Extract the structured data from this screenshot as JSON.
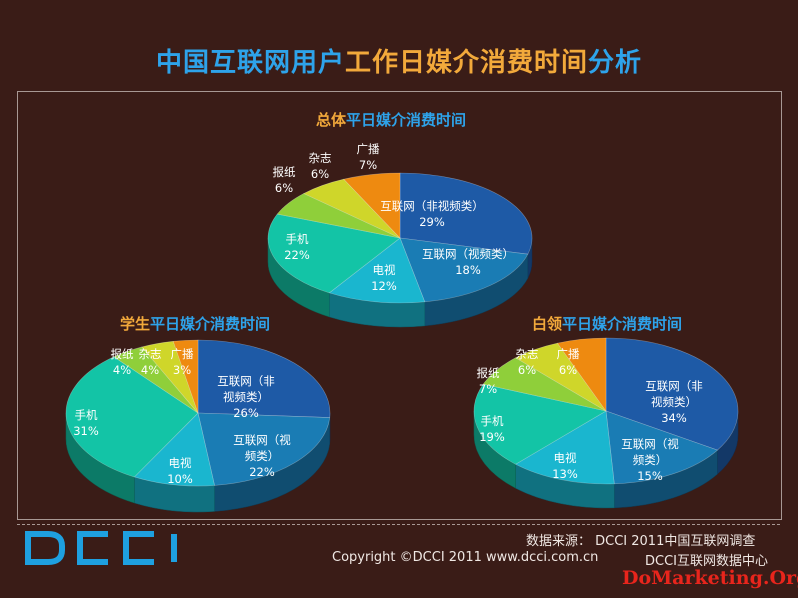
{
  "title": {
    "part1": "中国互联网用户",
    "part2": "工作日媒介消费时间",
    "part3": "分析"
  },
  "footer": {
    "source": "数据来源： DCCI 2011中国互联网调查",
    "copyright": "Copyright ©DCCI 2011 www.dcci.com.cn",
    "center": "DCCI互联网数据中心",
    "watermark": "DoMarketing.Org",
    "logo": "DCCI"
  },
  "colors": {
    "net_nonvideo": "#1e5aa6",
    "net_video": "#1a7cb4",
    "tv": "#1ab6cf",
    "mobile": "#13c4a6",
    "newspaper": "#8fcf3a",
    "magazine": "#cfd62a",
    "radio": "#ee8a10"
  },
  "chart_data": [
    {
      "type": "pie",
      "title_a": "总体",
      "title_b": "平日媒介消费时间",
      "slices": [
        {
          "label_lines": [
            "互联网（非视频类）"
          ],
          "value": 29,
          "pct": "29%",
          "color_key": "net_nonvideo"
        },
        {
          "label_lines": [
            "互联网（视频类）"
          ],
          "value": 18,
          "pct": "18%",
          "color_key": "net_video"
        },
        {
          "label_lines": [
            "电视"
          ],
          "value": 12,
          "pct": "12%",
          "color_key": "tv"
        },
        {
          "label_lines": [
            "手机"
          ],
          "value": 22,
          "pct": "22%",
          "color_key": "mobile"
        },
        {
          "label_lines": [
            "报纸"
          ],
          "value": 6,
          "pct": "6%",
          "color_key": "newspaper"
        },
        {
          "label_lines": [
            "杂志"
          ],
          "value": 6,
          "pct": "6%",
          "color_key": "magazine"
        },
        {
          "label_lines": [
            "广播"
          ],
          "value": 7,
          "pct": "7%",
          "color_key": "radio"
        }
      ]
    },
    {
      "type": "pie",
      "title_a": "学生",
      "title_b": "平日媒介消费时间",
      "slices": [
        {
          "label_lines": [
            "互联网（非",
            "视频类）"
          ],
          "value": 26,
          "pct": "26%",
          "color_key": "net_nonvideo"
        },
        {
          "label_lines": [
            "互联网（视",
            "频类）"
          ],
          "value": 22,
          "pct": "22%",
          "color_key": "net_video"
        },
        {
          "label_lines": [
            "电视"
          ],
          "value": 10,
          "pct": "10%",
          "color_key": "tv"
        },
        {
          "label_lines": [
            "手机"
          ],
          "value": 31,
          "pct": "31%",
          "color_key": "mobile"
        },
        {
          "label_lines": [
            "报纸"
          ],
          "value": 4,
          "pct": "4%",
          "color_key": "newspaper"
        },
        {
          "label_lines": [
            "杂志"
          ],
          "value": 4,
          "pct": "4%",
          "color_key": "magazine"
        },
        {
          "label_lines": [
            "广播"
          ],
          "value": 3,
          "pct": "3%",
          "color_key": "radio"
        }
      ]
    },
    {
      "type": "pie",
      "title_a": "白领",
      "title_b": "平日媒介消费时间",
      "slices": [
        {
          "label_lines": [
            "互联网（非",
            "视频类）"
          ],
          "value": 34,
          "pct": "34%",
          "color_key": "net_nonvideo"
        },
        {
          "label_lines": [
            "互联网（视",
            "频类）"
          ],
          "value": 15,
          "pct": "15%",
          "color_key": "net_video"
        },
        {
          "label_lines": [
            "电视"
          ],
          "value": 13,
          "pct": "13%",
          "color_key": "tv"
        },
        {
          "label_lines": [
            "手机"
          ],
          "value": 19,
          "pct": "19%",
          "color_key": "mobile"
        },
        {
          "label_lines": [
            "报纸"
          ],
          "value": 7,
          "pct": "7%",
          "color_key": "newspaper"
        },
        {
          "label_lines": [
            "杂志"
          ],
          "value": 6,
          "pct": "6%",
          "color_key": "magazine"
        },
        {
          "label_lines": [
            "广播"
          ],
          "value": 6,
          "pct": "6%",
          "color_key": "radio"
        }
      ]
    }
  ]
}
